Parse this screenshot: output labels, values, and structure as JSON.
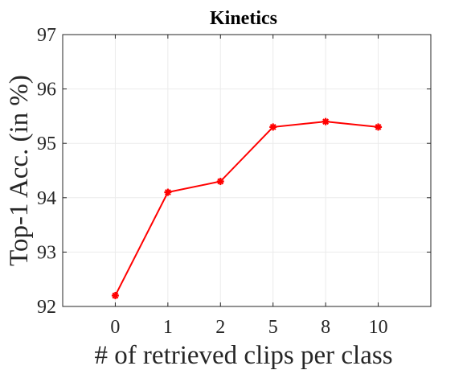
{
  "chart_data": {
    "type": "line",
    "title": "Kinetics",
    "xlabel": "# of retrieved clips per class",
    "ylabel": "Top-1 Acc. (in %)",
    "categories": [
      "0",
      "1",
      "2",
      "5",
      "8",
      "10"
    ],
    "series": [
      {
        "values": [
          92.2,
          94.1,
          94.3,
          95.3,
          95.4,
          95.3
        ],
        "color": "#ff0000",
        "marker": "asterisk"
      }
    ],
    "ylim": [
      92,
      97
    ],
    "yticks": [
      "92",
      "93",
      "94",
      "95",
      "96",
      "97"
    ],
    "grid": true,
    "legend": "none"
  }
}
